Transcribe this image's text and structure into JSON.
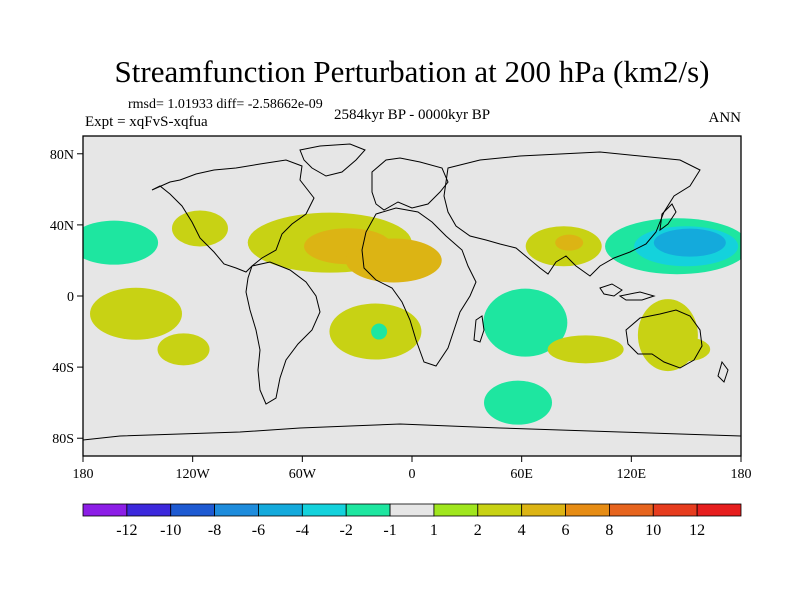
{
  "chart_data": {
    "type": "heatmap",
    "title": "Streamfunction Perturbation at 200 hPa (km2/s)",
    "stats": "rmsd= 1.01933 diff= -2.58662e-09",
    "experiment": "Expt = xqFvS-xqfua",
    "period": "2584kyr BP - 0000kyr BP",
    "season": "ANN",
    "x_axis": {
      "range": [
        -180,
        180
      ],
      "ticks": [
        {
          "value": -180,
          "label": "180"
        },
        {
          "value": -120,
          "label": "120W"
        },
        {
          "value": -60,
          "label": "60W"
        },
        {
          "value": 0,
          "label": "0"
        },
        {
          "value": 60,
          "label": "60E"
        },
        {
          "value": 120,
          "label": "120E"
        },
        {
          "value": 180,
          "label": "180"
        }
      ]
    },
    "y_axis": {
      "range": [
        -90,
        90
      ],
      "ticks": [
        {
          "value": 80,
          "label": "80N"
        },
        {
          "value": 40,
          "label": "40N"
        },
        {
          "value": 0,
          "label": "0"
        },
        {
          "value": -40,
          "label": "40S"
        },
        {
          "value": -80,
          "label": "80S"
        }
      ]
    },
    "colorbar": {
      "labels": [
        "-12",
        "-10",
        "-8",
        "-6",
        "-4",
        "-2",
        "-1",
        "1",
        "2",
        "4",
        "6",
        "8",
        "10",
        "12"
      ],
      "colors": [
        "#8c1ee6",
        "#3c28dc",
        "#1e5ad2",
        "#1e8cdc",
        "#14aadc",
        "#14d2dc",
        "#1ee6a0",
        "#e6e6e6",
        "#a0e61e",
        "#c8d214",
        "#dcb414",
        "#e68c14",
        "#e6641e",
        "#e63c1e",
        "#e61e1e"
      ]
    },
    "anomaly_regions": [
      {
        "lon": -163,
        "lat": 30,
        "level": "-1"
      },
      {
        "lon": -116,
        "lat": 38,
        "level": "2"
      },
      {
        "lon": -45,
        "lat": 30,
        "level": "2"
      },
      {
        "lon": -35,
        "lat": 28,
        "level": "4"
      },
      {
        "lon": -10,
        "lat": 20,
        "level": "4"
      },
      {
        "lon": 83,
        "lat": 28,
        "level": "2"
      },
      {
        "lon": 86,
        "lat": 30,
        "level": "4"
      },
      {
        "lon": 145,
        "lat": 28,
        "level": "-1"
      },
      {
        "lon": 150,
        "lat": 28,
        "level": "-2"
      },
      {
        "lon": 152,
        "lat": 30,
        "level": "-4"
      },
      {
        "lon": 62,
        "lat": -15,
        "level": "-1"
      },
      {
        "lon": -151,
        "lat": -10,
        "level": "2"
      },
      {
        "lon": -125,
        "lat": -30,
        "level": "2"
      },
      {
        "lon": -20,
        "lat": -20,
        "level": "2"
      },
      {
        "lon": -18,
        "lat": -20,
        "level": "-1"
      },
      {
        "lon": 95,
        "lat": -30,
        "level": "2"
      },
      {
        "lon": 140,
        "lat": -22,
        "level": "2"
      },
      {
        "lon": 150,
        "lat": -30,
        "level": "2"
      },
      {
        "lon": 58,
        "lat": -60,
        "level": "-1"
      }
    ]
  }
}
